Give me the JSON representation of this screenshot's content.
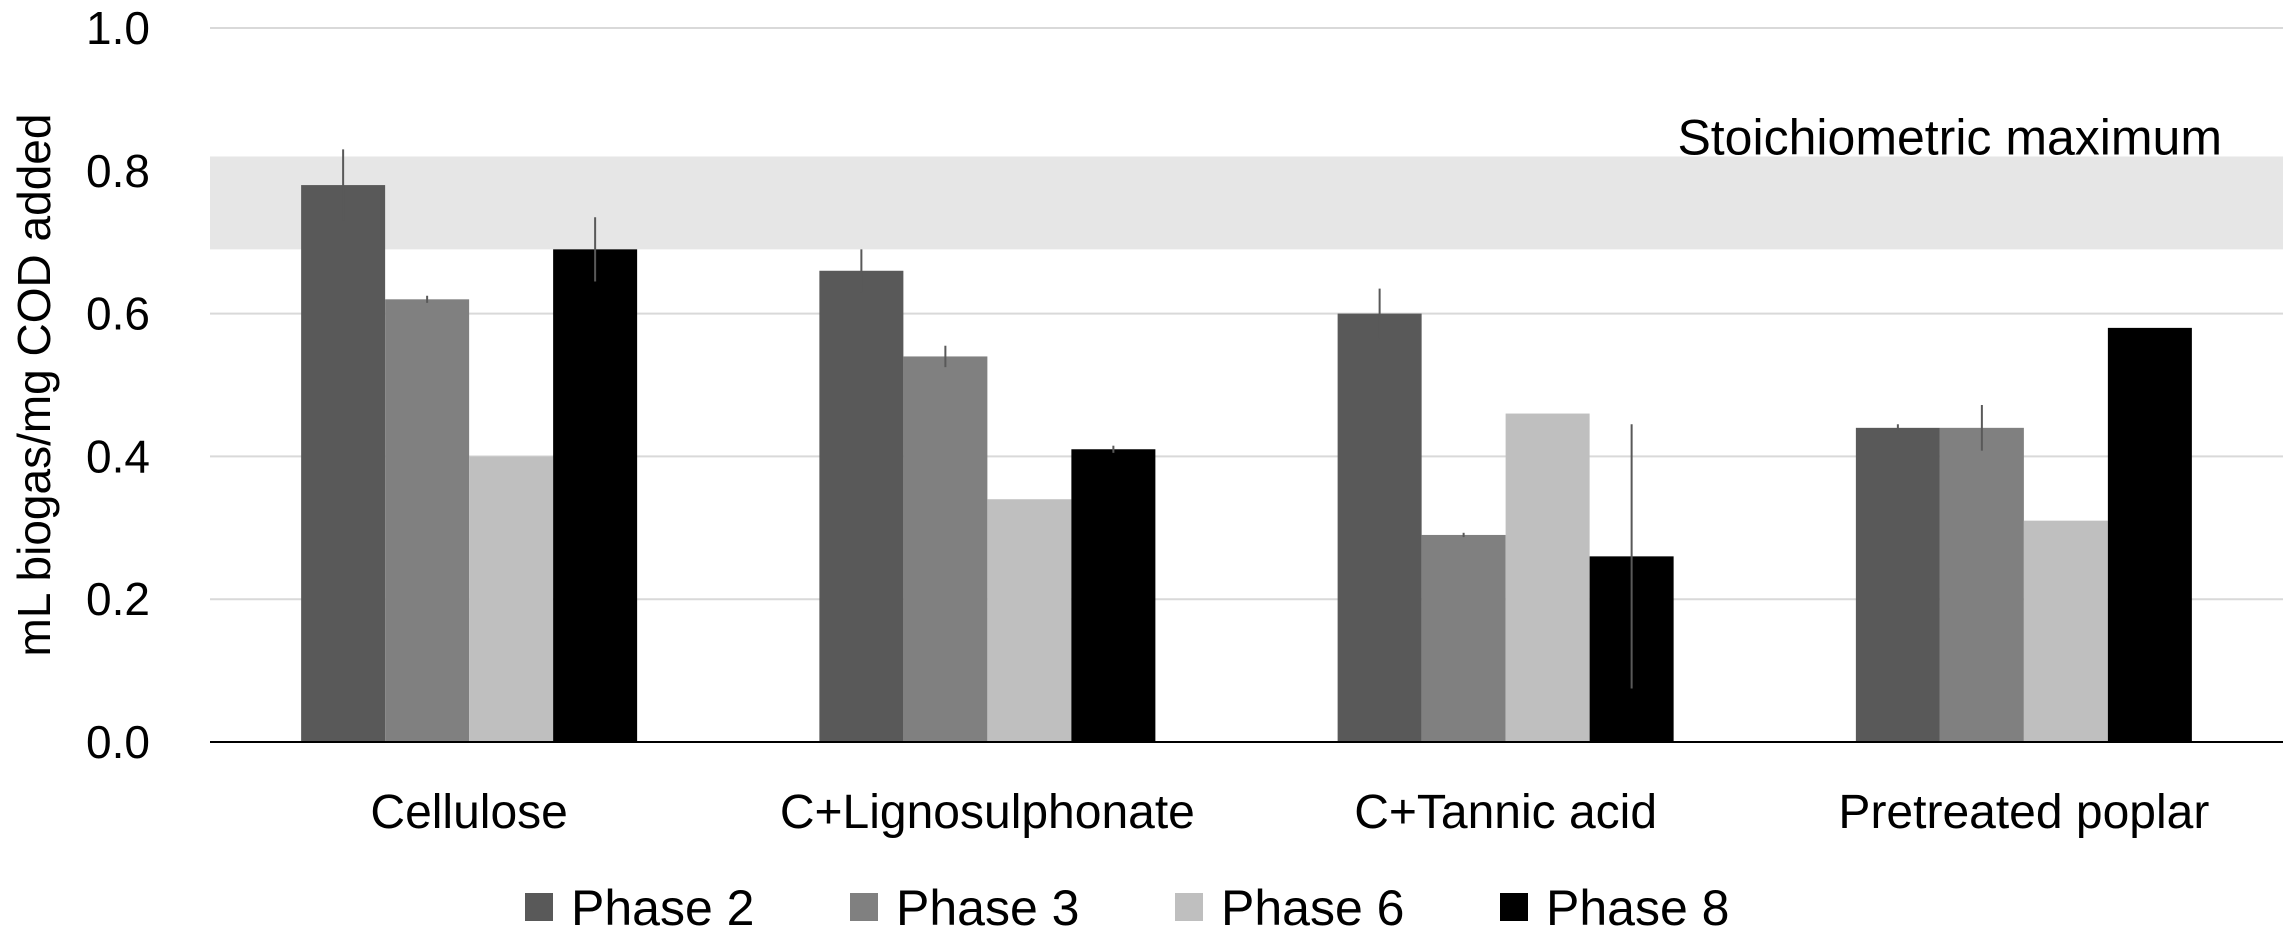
{
  "chart_data": {
    "type": "bar",
    "title": "",
    "xlabel": "",
    "ylabel": "mL biogas/mg COD added",
    "ylim": [
      0,
      1.0
    ],
    "yticks": [
      "0.0",
      "0.2",
      "0.4",
      "0.6",
      "0.8",
      "1.0"
    ],
    "grid": true,
    "legend_position": "bottom",
    "categories": [
      "Cellulose",
      "C+Lignosulphonate",
      "C+Tannic acid",
      "Pretreated poplar"
    ],
    "series": [
      {
        "name": "Phase 2",
        "color": "#595959",
        "values": [
          0.78,
          0.66,
          0.6,
          0.44
        ],
        "errors": [
          0.05,
          0.03,
          0.035,
          0.005
        ]
      },
      {
        "name": "Phase 3",
        "color": "#808080",
        "values": [
          0.62,
          0.54,
          0.29,
          0.44
        ],
        "errors": [
          0.005,
          0.015,
          0.003,
          0.032
        ]
      },
      {
        "name": "Phase 6",
        "color": "#bfbfbf",
        "values": [
          0.4,
          0.34,
          0.46,
          0.31
        ],
        "errors": [
          0,
          0,
          0,
          0
        ]
      },
      {
        "name": "Phase 8",
        "color": "#000000",
        "values": [
          0.69,
          0.41,
          0.26,
          0.58
        ],
        "errors": [
          0.045,
          0.005,
          0.185,
          0
        ]
      }
    ],
    "annotation": {
      "label": "Stoichiometric maximum",
      "range": [
        0.69,
        0.82
      ],
      "color": "#e6e6e6"
    }
  }
}
